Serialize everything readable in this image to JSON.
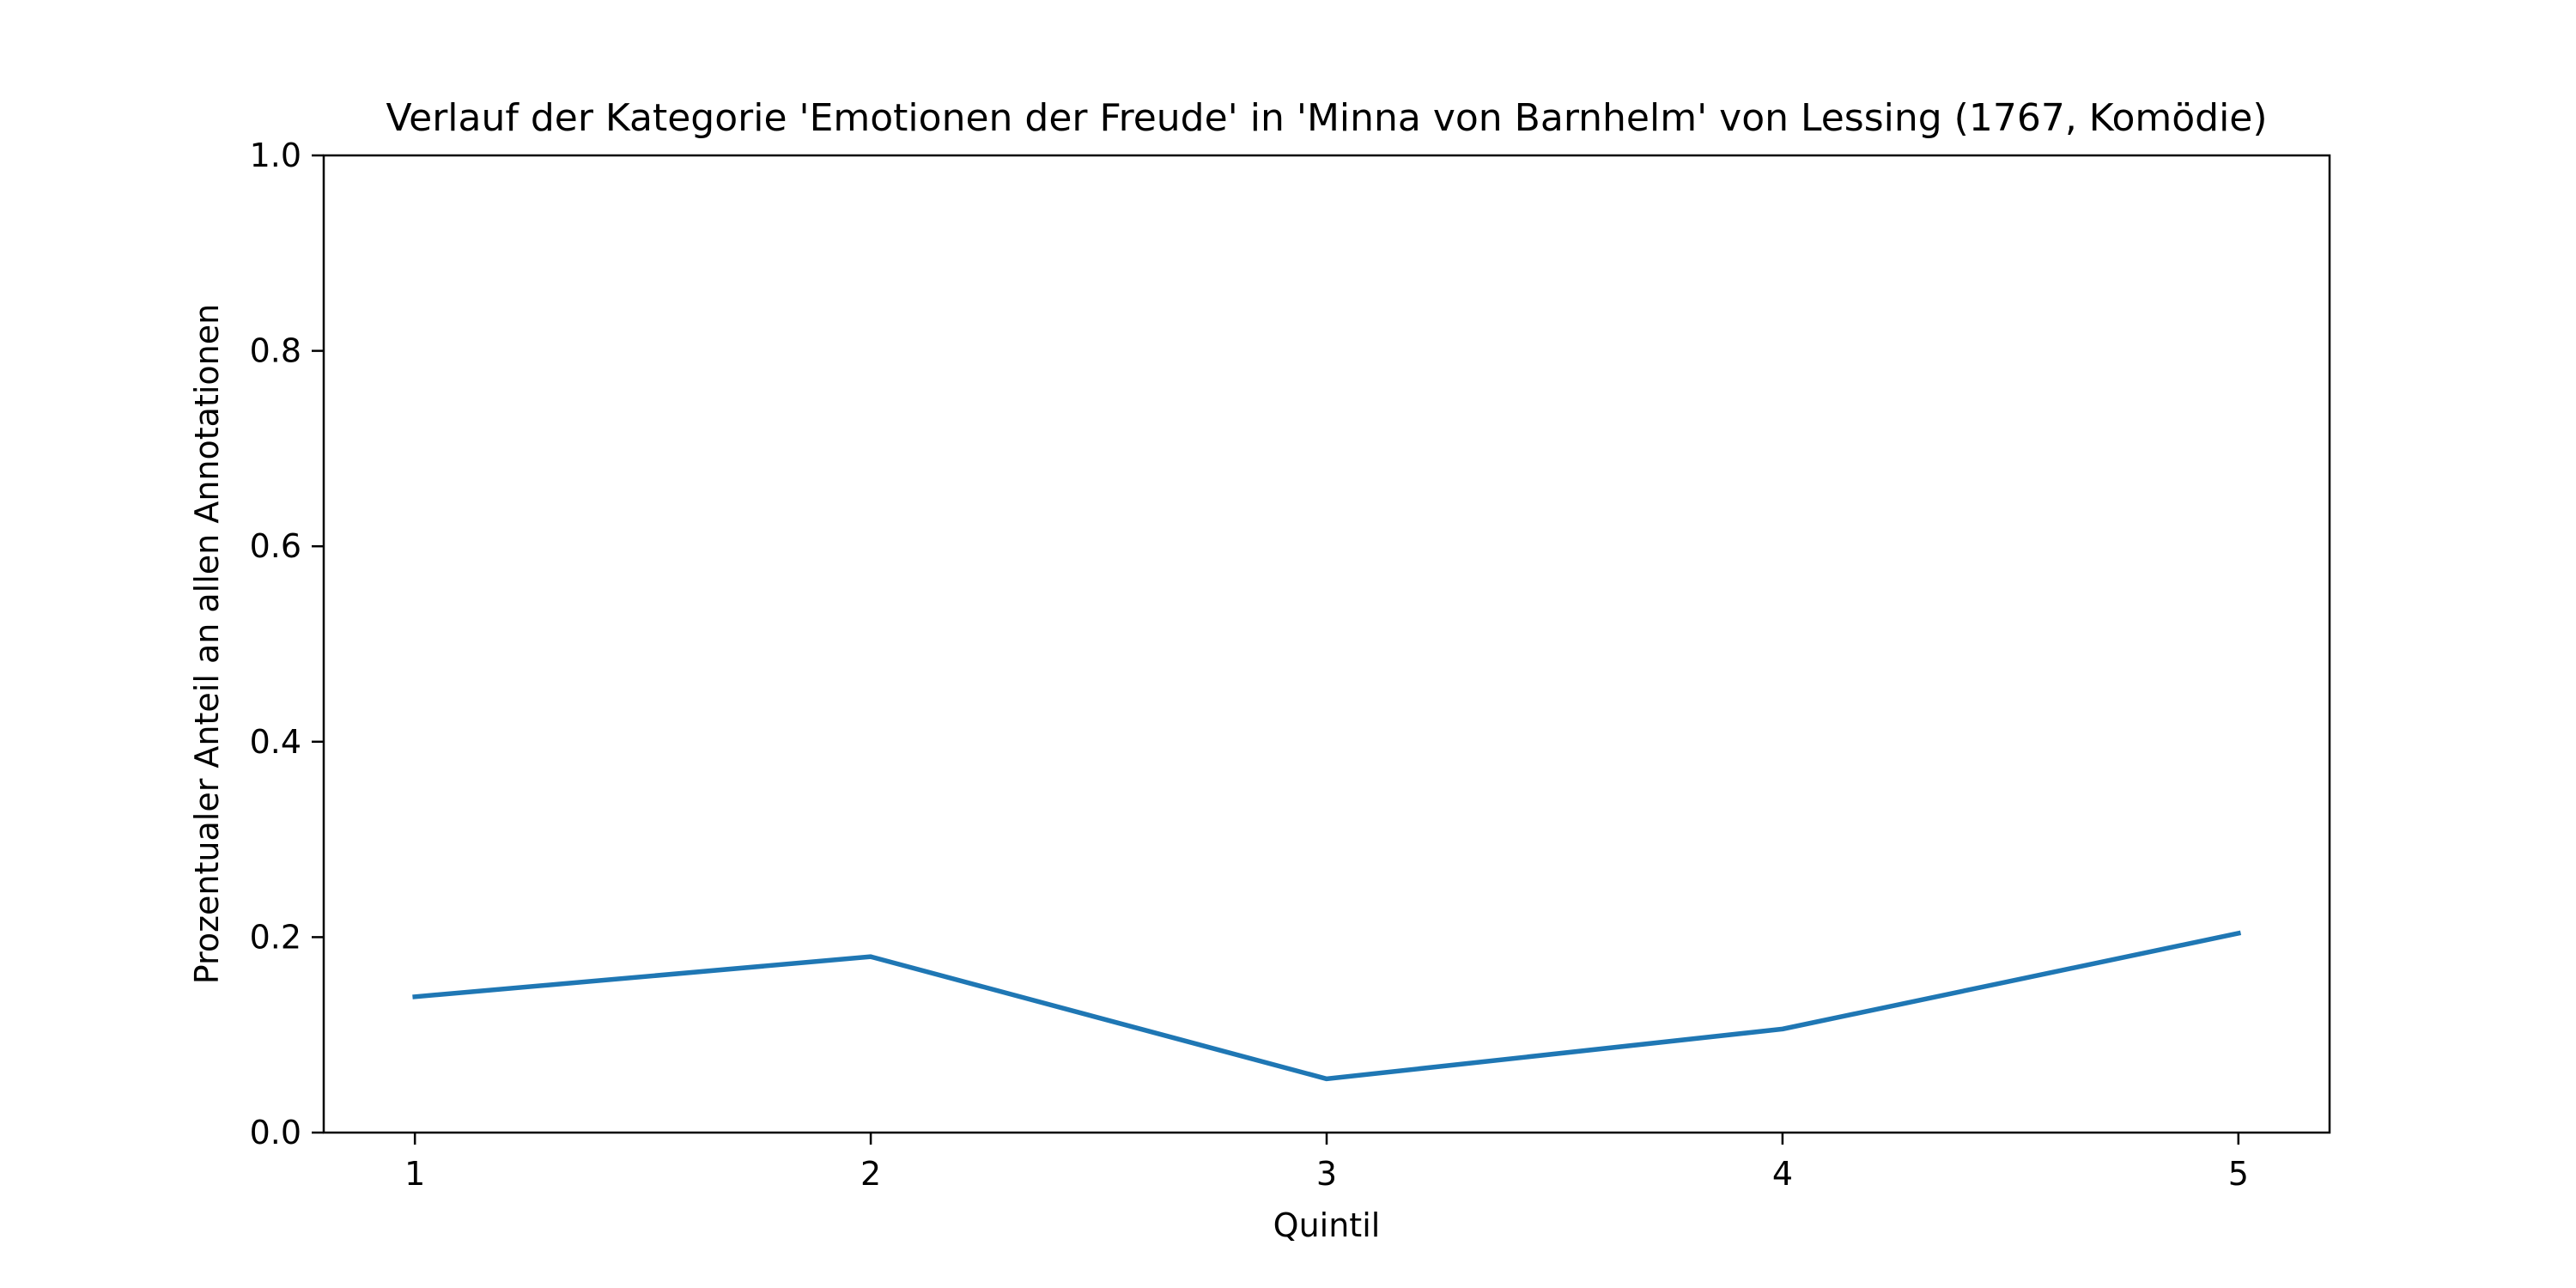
{
  "chart_data": {
    "type": "line",
    "title": "Verlauf der Kategorie 'Emotionen der Freude' in 'Minna von Barnhelm' von Lessing (1767, Komödie)",
    "xlabel": "Quintil",
    "ylabel": "Prozentualer Anteil an allen Annotationen",
    "x": [
      1,
      2,
      3,
      4,
      5
    ],
    "x_tick_labels": [
      "1",
      "2",
      "3",
      "4",
      "5"
    ],
    "y_tick_labels": [
      "0.0",
      "0.2",
      "0.4",
      "0.6",
      "0.8",
      "1.0"
    ],
    "xlim": [
      0.8,
      5.2
    ],
    "ylim": [
      0,
      1
    ],
    "series": [
      {
        "values": [
          0.139,
          0.18,
          0.055,
          0.106,
          0.204
        ],
        "color": "#1f77b4"
      }
    ],
    "grid": false,
    "legend": "none"
  }
}
